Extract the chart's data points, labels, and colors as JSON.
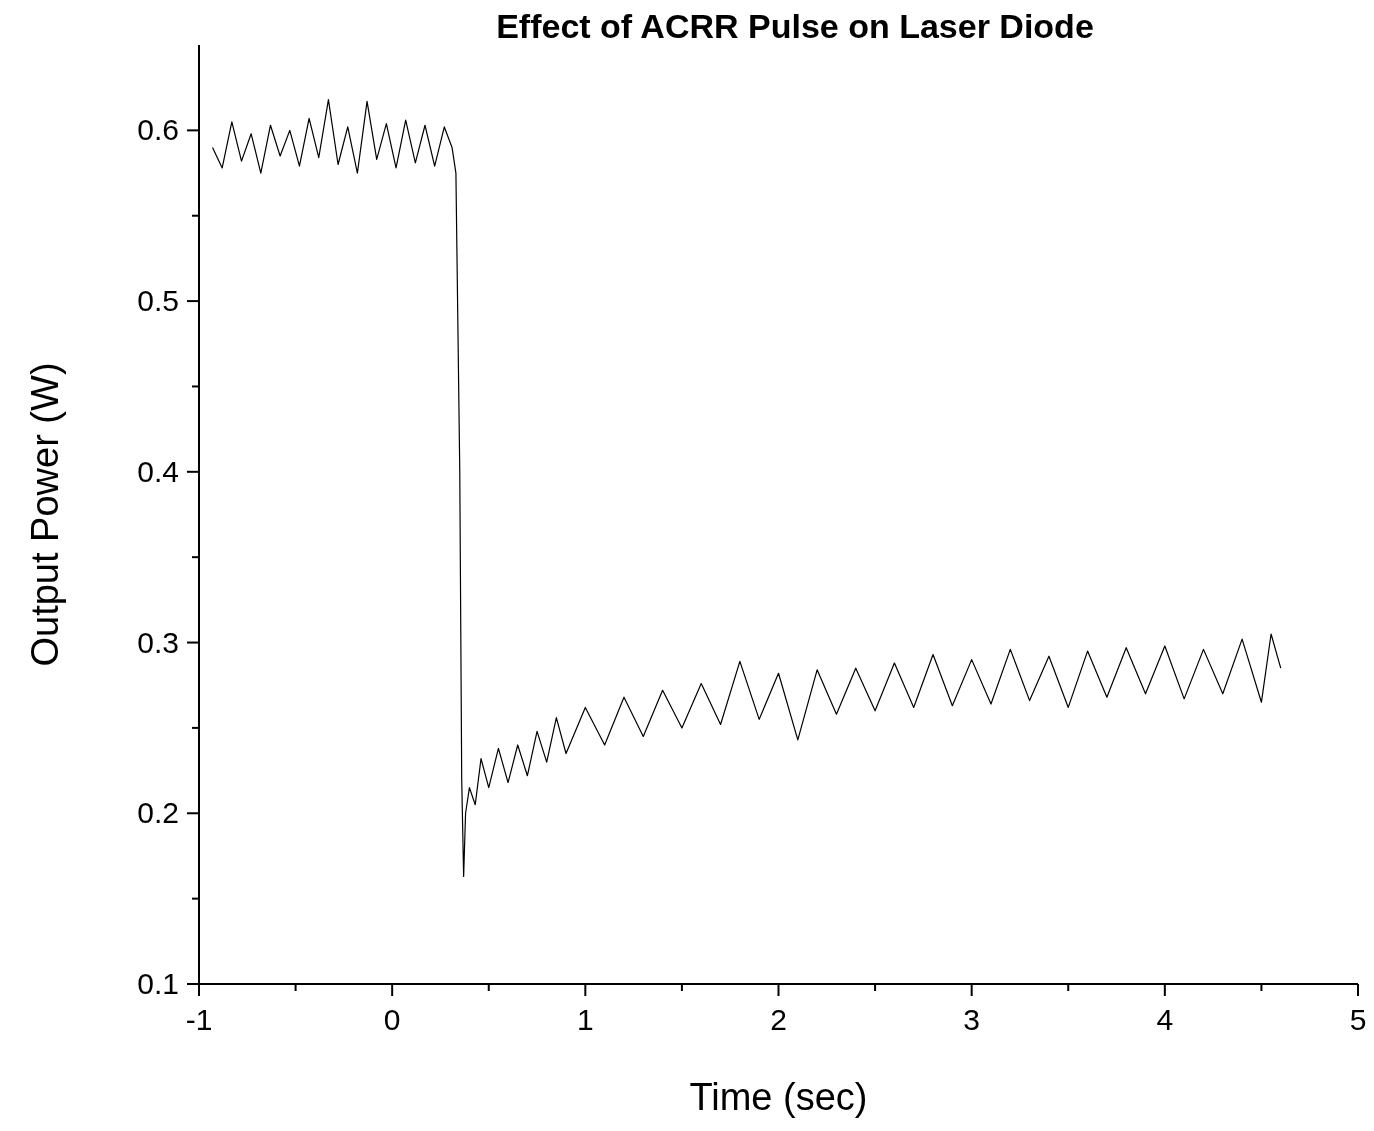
{
  "chart_data": {
    "type": "line",
    "title": "Effect of ACRR Pulse on Laser Diode",
    "xlabel": "Time (sec)",
    "ylabel": "Output Power (W)",
    "xlim": [
      -1,
      5
    ],
    "ylim": [
      0.1,
      0.65
    ],
    "xticks": [
      -1,
      {
        "value": -0.5,
        "label": null
      },
      0,
      {
        "value": 0.5,
        "label": null
      },
      1,
      {
        "value": 1.5,
        "label": null
      },
      2,
      {
        "value": 2.5,
        "label": null
      },
      3,
      {
        "value": 3.5,
        "label": null
      },
      4,
      {
        "value": 4.5,
        "label": null
      },
      5
    ],
    "yticks": [
      0.1,
      {
        "value": 0.15,
        "label": null
      },
      0.2,
      {
        "value": 0.25,
        "label": null
      },
      0.3,
      {
        "value": 0.35,
        "label": null
      },
      0.4,
      {
        "value": 0.45,
        "label": null
      },
      0.5,
      {
        "value": 0.55,
        "label": null
      },
      0.6
    ],
    "grid": false,
    "marker": "none",
    "line_style": "solid",
    "series": [
      {
        "color": "#000000",
        "x": [
          -0.93,
          -0.88,
          -0.83,
          -0.78,
          -0.73,
          -0.68,
          -0.63,
          -0.58,
          -0.53,
          -0.48,
          -0.43,
          -0.38,
          -0.33,
          -0.28,
          -0.23,
          -0.18,
          -0.13,
          -0.08,
          -0.03,
          0.02,
          0.07,
          0.12,
          0.17,
          0.22,
          0.27,
          0.31,
          0.33,
          0.35,
          0.36,
          0.37,
          0.38,
          0.4,
          0.43,
          0.46,
          0.5,
          0.55,
          0.6,
          0.65,
          0.7,
          0.75,
          0.8,
          0.85,
          0.9,
          1.0,
          1.1,
          1.2,
          1.3,
          1.4,
          1.5,
          1.6,
          1.7,
          1.8,
          1.9,
          2.0,
          2.1,
          2.2,
          2.3,
          2.4,
          2.5,
          2.6,
          2.7,
          2.8,
          2.9,
          3.0,
          3.1,
          3.2,
          3.3,
          3.4,
          3.5,
          3.6,
          3.7,
          3.8,
          3.9,
          4.0,
          4.1,
          4.2,
          4.3,
          4.4,
          4.5,
          4.55,
          4.6
        ],
        "values": [
          0.59,
          0.578,
          0.605,
          0.582,
          0.598,
          0.575,
          0.603,
          0.585,
          0.6,
          0.579,
          0.607,
          0.584,
          0.618,
          0.58,
          0.602,
          0.575,
          0.617,
          0.583,
          0.604,
          0.578,
          0.606,
          0.581,
          0.603,
          0.579,
          0.602,
          0.59,
          0.575,
          0.4,
          0.22,
          0.163,
          0.2,
          0.215,
          0.205,
          0.232,
          0.215,
          0.238,
          0.218,
          0.24,
          0.222,
          0.248,
          0.23,
          0.256,
          0.235,
          0.262,
          0.24,
          0.268,
          0.245,
          0.272,
          0.25,
          0.276,
          0.252,
          0.289,
          0.255,
          0.282,
          0.243,
          0.284,
          0.258,
          0.285,
          0.26,
          0.288,
          0.262,
          0.293,
          0.263,
          0.29,
          0.264,
          0.296,
          0.266,
          0.292,
          0.262,
          0.295,
          0.268,
          0.297,
          0.27,
          0.298,
          0.267,
          0.296,
          0.27,
          0.302,
          0.265,
          0.305,
          0.285
        ]
      }
    ]
  }
}
